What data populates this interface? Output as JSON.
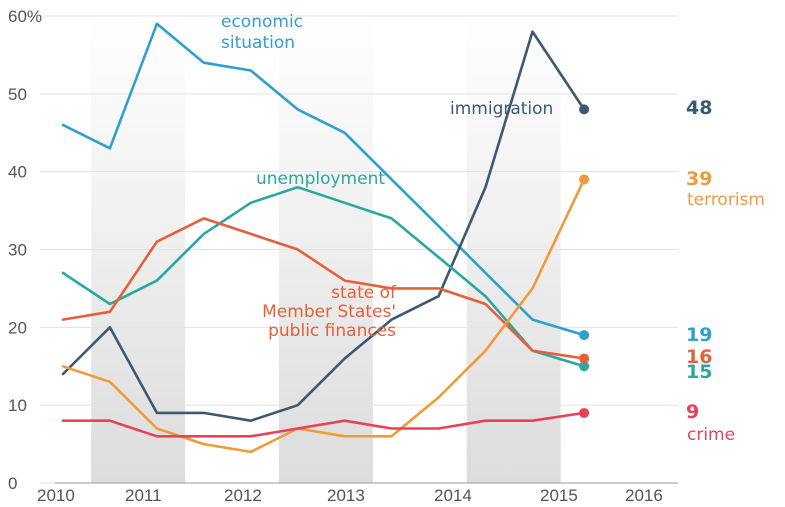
{
  "chart_data": {
    "type": "line",
    "title": "",
    "xlabel": "",
    "ylabel": "",
    "ylim": [
      0,
      60
    ],
    "xlim": [
      2010,
      2016.55
    ],
    "y_ticks": [
      "60%",
      "50",
      "40",
      "30",
      "20",
      "10",
      "0"
    ],
    "x_ticks": [
      "2010",
      "2011",
      "2012",
      "2013",
      "2014",
      "2015",
      "2016"
    ],
    "grid": "horizontal gridlines; alternating grey bands per year",
    "bands": [
      [
        2010.3,
        2011.3
      ],
      [
        2012.3,
        2013.3
      ],
      [
        2014.3,
        2015.3
      ]
    ],
    "series": [
      {
        "key": "economic",
        "name_lines": [
          "economic",
          "situation"
        ],
        "color": "#2f9fcf",
        "points": [
          [
            2010,
            46
          ],
          [
            2010.5,
            43
          ],
          [
            2011,
            59
          ],
          [
            2011.5,
            54
          ],
          [
            2012,
            53
          ],
          [
            2012.5,
            48
          ],
          [
            2013,
            45
          ],
          [
            2013.5,
            39
          ],
          [
            2014,
            33
          ],
          [
            2014.5,
            27
          ],
          [
            2015,
            21
          ],
          [
            2015.55,
            19
          ]
        ],
        "end_value": "19"
      },
      {
        "key": "immigration",
        "name_lines": [
          "immigration"
        ],
        "color": "#3f5872",
        "points": [
          [
            2010,
            14
          ],
          [
            2010.5,
            20
          ],
          [
            2011,
            9
          ],
          [
            2011.5,
            9
          ],
          [
            2012,
            8
          ],
          [
            2012.5,
            10
          ],
          [
            2013,
            16
          ],
          [
            2013.5,
            21
          ],
          [
            2014,
            24
          ],
          [
            2014.5,
            38
          ],
          [
            2015,
            58
          ],
          [
            2015.55,
            48
          ]
        ],
        "end_value": "48"
      },
      {
        "key": "unemployment",
        "name_lines": [
          "unemployment"
        ],
        "color": "#2aa8a0",
        "points": [
          [
            2010,
            27
          ],
          [
            2010.5,
            23
          ],
          [
            2011,
            26
          ],
          [
            2011.5,
            32
          ],
          [
            2012,
            36
          ],
          [
            2012.5,
            38
          ],
          [
            2013,
            36
          ],
          [
            2013.5,
            34
          ],
          [
            2014,
            29
          ],
          [
            2014.5,
            24
          ],
          [
            2015,
            17
          ],
          [
            2015.55,
            15
          ]
        ],
        "end_value": "15"
      },
      {
        "key": "public_finances",
        "name_lines": [
          "state of",
          "Member States'",
          "public finances"
        ],
        "color": "#e4603a",
        "points": [
          [
            2010,
            21
          ],
          [
            2010.5,
            22
          ],
          [
            2011,
            31
          ],
          [
            2011.5,
            34
          ],
          [
            2012,
            32
          ],
          [
            2012.5,
            30
          ],
          [
            2013,
            26
          ],
          [
            2013.5,
            25
          ],
          [
            2014,
            25
          ],
          [
            2014.5,
            23
          ],
          [
            2015,
            17
          ],
          [
            2015.55,
            16
          ]
        ],
        "end_value": "16"
      },
      {
        "key": "terrorism",
        "name_lines": [
          "terrorism"
        ],
        "color": "#f19a3a",
        "points": [
          [
            2010,
            15
          ],
          [
            2010.5,
            13
          ],
          [
            2011,
            7
          ],
          [
            2011.5,
            5
          ],
          [
            2012,
            4
          ],
          [
            2012.5,
            7
          ],
          [
            2013,
            6
          ],
          [
            2013.5,
            6
          ],
          [
            2014,
            11
          ],
          [
            2014.5,
            17
          ],
          [
            2015,
            25
          ],
          [
            2015.55,
            39
          ]
        ],
        "end_value": "39"
      },
      {
        "key": "crime",
        "name_lines": [
          "crime"
        ],
        "color": "#e4435a",
        "points": [
          [
            2010,
            8
          ],
          [
            2010.5,
            8
          ],
          [
            2011,
            6
          ],
          [
            2011.5,
            6
          ],
          [
            2012,
            6
          ],
          [
            2012.5,
            7
          ],
          [
            2013,
            8
          ],
          [
            2013.5,
            7
          ],
          [
            2014,
            7
          ],
          [
            2014.5,
            8
          ],
          [
            2015,
            8
          ],
          [
            2015.55,
            9
          ]
        ],
        "end_value": "9"
      }
    ]
  }
}
